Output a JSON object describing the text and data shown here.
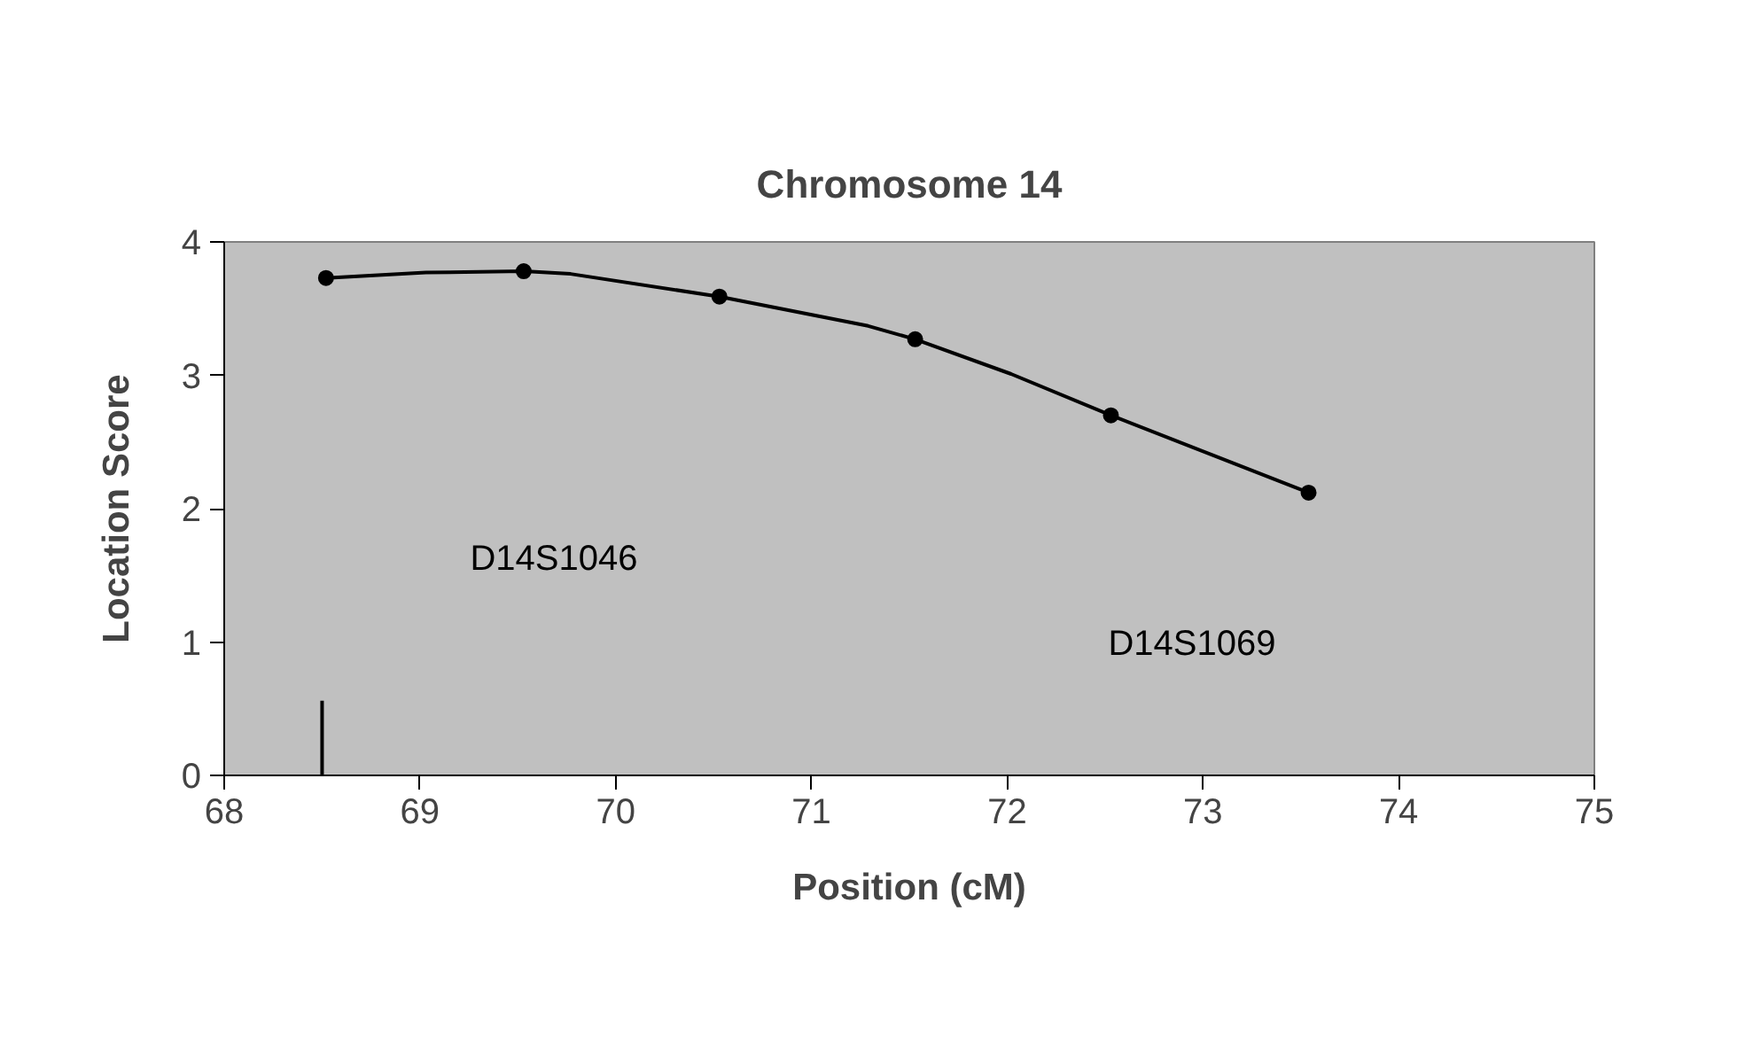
{
  "chart_data": {
    "type": "line",
    "title": "Chromosome 14",
    "xlabel": "Position (cM)",
    "ylabel": "Location Score",
    "xlim": [
      68,
      75
    ],
    "xticks": [
      68,
      69,
      70,
      71,
      72,
      73,
      74,
      75
    ],
    "ylim": [
      0,
      4
    ],
    "yticks": [
      0,
      1,
      2,
      3,
      4
    ],
    "grid": false,
    "series": [
      {
        "color": "#000000",
        "marker": "none",
        "x": [
          68.52,
          69.03,
          69.53,
          69.77,
          70.53,
          71.29,
          71.53,
          72.02,
          72.53,
          73.54
        ],
        "values": [
          3.73,
          3.77,
          3.78,
          3.76,
          3.59,
          3.37,
          3.27,
          3.01,
          2.7,
          2.12
        ]
      },
      {
        "type": "scatter",
        "color": "#000000",
        "marker": "circle",
        "x": [
          68.52,
          69.53,
          70.53,
          71.53,
          72.53,
          73.54
        ],
        "values": [
          3.73,
          3.78,
          3.59,
          3.27,
          2.7,
          2.12
        ]
      },
      {
        "color": "#000000",
        "marker": "none",
        "x": [
          68.5,
          68.5
        ],
        "values": [
          0,
          0.56
        ]
      }
    ],
    "annotations": [
      "D14S1046",
      "D14S1069"
    ]
  }
}
